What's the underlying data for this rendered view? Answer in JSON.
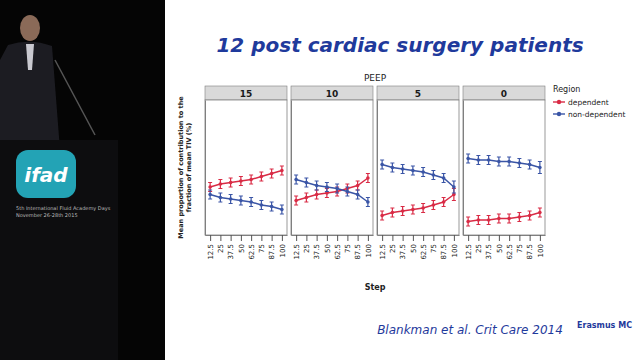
{
  "slide": {
    "title": "12 post cardiac surgery patients",
    "facet_label": "PEEP",
    "xlabel": "Step",
    "ylabel": [
      "Mean proportion of contribution to the",
      "fraction of mean TIV (%)"
    ],
    "legend_title": "Region",
    "citation": "Blankman et al. Crit Care 2014",
    "conference_logo": "ifad",
    "conference_lines": [
      "5th International Fluid Academy Days",
      "November 26-28th 2015"
    ],
    "institution": "Erasmus MC"
  },
  "chart_data": [
    {
      "type": "line",
      "title": "15",
      "legend": "right",
      "tick_labels": "x",
      "categories": [
        "12.5",
        "25",
        "37.5",
        "50",
        "62.5",
        "75",
        "87.5",
        "100"
      ],
      "ylim": [
        20,
        110
      ],
      "series": [
        {
          "name": "dependent",
          "color": "#d92b45",
          "marker": "circle",
          "values": [
            52,
            54,
            55,
            56,
            57,
            59,
            61,
            63
          ],
          "error": [
            3,
            3,
            3,
            3,
            3,
            3,
            3,
            3
          ]
        },
        {
          "name": "non-dependent",
          "color": "#3a55a6",
          "marker": "circle",
          "values": [
            47,
            45,
            44,
            43,
            42,
            40,
            39,
            37
          ],
          "error": [
            3,
            3,
            3,
            3,
            3,
            3,
            3,
            3
          ]
        }
      ]
    },
    {
      "type": "line",
      "title": "10",
      "tick_labels": "x",
      "categories": [
        "12.5",
        "25",
        "37.5",
        "50",
        "62.5",
        "75",
        "87.5",
        "100"
      ],
      "ylim": [
        20,
        110
      ],
      "series": [
        {
          "name": "dependent",
          "color": "#d92b45",
          "marker": "circle",
          "values": [
            43,
            45,
            47,
            48,
            49,
            51,
            53,
            58
          ],
          "error": [
            3,
            3,
            3,
            3,
            3,
            3,
            3,
            3
          ]
        },
        {
          "name": "non-dependent",
          "color": "#3a55a6",
          "marker": "circle",
          "values": [
            57,
            55,
            53,
            52,
            51,
            49,
            47,
            42
          ],
          "error": [
            3,
            3,
            3,
            3,
            3,
            3,
            3,
            3
          ]
        }
      ]
    },
    {
      "type": "line",
      "title": "5",
      "tick_labels": "x",
      "categories": [
        "12.5",
        "25",
        "37.5",
        "50",
        "62.5",
        "75",
        "87.5",
        "100"
      ],
      "ylim": [
        20,
        110
      ],
      "series": [
        {
          "name": "dependent",
          "color": "#d92b45",
          "marker": "circle",
          "values": [
            33,
            35,
            36,
            37,
            38,
            40,
            42,
            47
          ],
          "error": [
            3,
            3,
            3,
            3,
            3,
            3,
            3,
            4
          ]
        },
        {
          "name": "non-dependent",
          "color": "#3a55a6",
          "marker": "circle",
          "values": [
            67,
            65,
            64,
            63,
            62,
            60,
            58,
            52
          ],
          "error": [
            3,
            3,
            3,
            3,
            3,
            3,
            3,
            4
          ]
        }
      ]
    },
    {
      "type": "line",
      "title": "0",
      "tick_labels": "x",
      "categories": [
        "12.5",
        "25",
        "37.5",
        "50",
        "62.5",
        "75",
        "87.5",
        "100"
      ],
      "ylim": [
        20,
        110
      ],
      "series": [
        {
          "name": "dependent",
          "color": "#d92b45",
          "marker": "circle",
          "values": [
            29,
            30,
            30,
            31,
            31,
            32,
            33,
            35
          ],
          "error": [
            3,
            3,
            3,
            3,
            3,
            3,
            3,
            3
          ]
        },
        {
          "name": "non-dependent",
          "color": "#3a55a6",
          "marker": "circle",
          "values": [
            71,
            70,
            70,
            69,
            69,
            68,
            67,
            65
          ],
          "error": [
            3,
            3,
            3,
            3,
            3,
            3,
            3,
            4
          ]
        }
      ]
    }
  ]
}
